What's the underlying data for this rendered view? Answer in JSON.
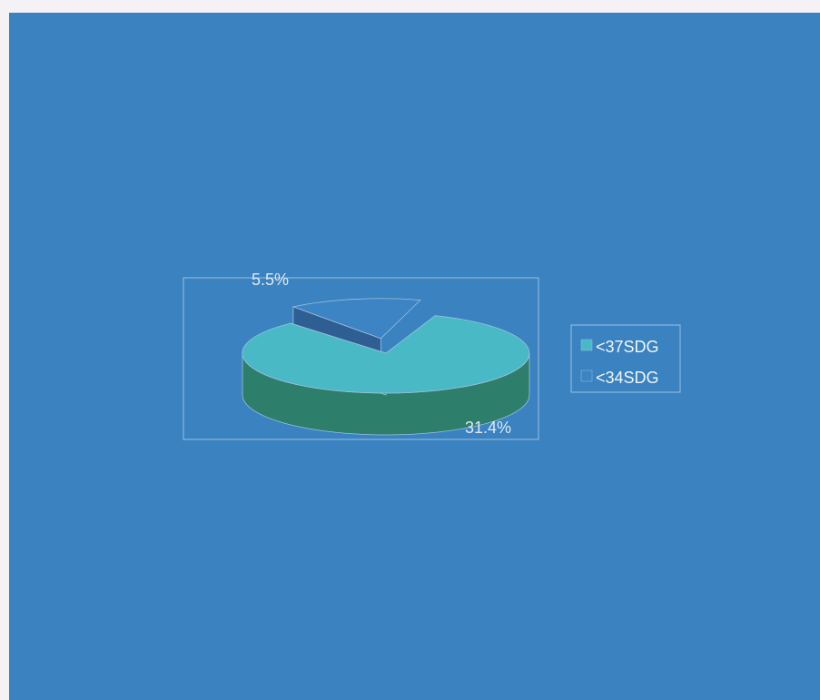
{
  "chart_data": {
    "type": "pie",
    "style": "3d-exploded",
    "slices": [
      {
        "name": "<37SDG",
        "label": "31.4%",
        "value": 31.4,
        "color": "#49b9c6",
        "side_color": "#2d7e6b"
      },
      {
        "name": "<34SDG",
        "label": "5.5%",
        "value": 5.5,
        "color": "#3d84c4",
        "side_color": "#2f5e92"
      }
    ],
    "legend": {
      "placement": "right",
      "entries": [
        "<37SDG",
        "<34SDG"
      ]
    },
    "colors": {
      "background": "#3a82c0",
      "border": "#9cc0e0"
    }
  }
}
